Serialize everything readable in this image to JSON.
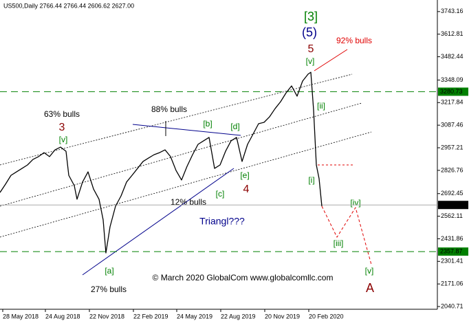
{
  "chart_data": {
    "type": "line",
    "header": "US500,Daily  2766.44 2766.44 2606.62 2627.00",
    "ylim": [
      2025,
      3810
    ],
    "yticks": [
      3743.16,
      3612.81,
      3482.44,
      3348.09,
      3217.84,
      3087.46,
      2957.21,
      2826.76,
      2692.45,
      2562.11,
      2431.86,
      2301.41,
      2171.06,
      2040.71
    ],
    "xlim": [
      0,
      636
    ],
    "xticks": [
      {
        "value": 4,
        "label": "28 May 2018"
      },
      {
        "value": 66,
        "label": "24 Aug 2018"
      },
      {
        "value": 130,
        "label": "22 Nov 2018"
      },
      {
        "value": 194,
        "label": "22 Feb 2019"
      },
      {
        "value": 257,
        "label": "24 May 2019"
      },
      {
        "value": 321,
        "label": "22 Aug 2019"
      },
      {
        "value": 385,
        "label": "20 Nov 2019"
      },
      {
        "value": 449,
        "label": "20 Feb 2020"
      }
    ],
    "levels": [
      {
        "value": 3280.73,
        "label": "3280.73",
        "color": "#008000"
      },
      {
        "value": 2627,
        "label": "2627.00",
        "color": "#000000"
      },
      {
        "value": 2357.87,
        "label": "2357.87",
        "color": "#008000"
      }
    ],
    "series": [
      {
        "name": "US500",
        "color": "#000000",
        "x": [
          0,
          8,
          16,
          24,
          32,
          40,
          48,
          56,
          64,
          72,
          80,
          88,
          96,
          100,
          108,
          112,
          120,
          128,
          136,
          144,
          150,
          154,
          160,
          168,
          176,
          184,
          192,
          200,
          208,
          216,
          224,
          232,
          240,
          248,
          256,
          264,
          272,
          280,
          288,
          296,
          304,
          312,
          320,
          328,
          336,
          344,
          352,
          360,
          368,
          376,
          384,
          392,
          400,
          408,
          416,
          424,
          432,
          440,
          448,
          452,
          456,
          460,
          464,
          468
        ],
        "values": [
          2699,
          2747,
          2798,
          2818,
          2838,
          2858,
          2890,
          2906,
          2929,
          2906,
          2945,
          2961,
          2937,
          2798,
          2739,
          2660,
          2759,
          2818,
          2719,
          2660,
          2541,
          2350,
          2501,
          2620,
          2679,
          2759,
          2798,
          2838,
          2878,
          2898,
          2917,
          2929,
          2945,
          2906,
          2826,
          2771,
          2850,
          2917,
          2977,
          2997,
          3017,
          2838,
          2858,
          2937,
          2997,
          3017,
          2878,
          2977,
          3036,
          3096,
          3104,
          3136,
          3183,
          3223,
          3274,
          3314,
          3255,
          3342,
          3382,
          3393,
          3175,
          2858,
          2779,
          2620
        ]
      },
      {
        "name": "projection",
        "color": "#e00000",
        "x": [
          468,
          490,
          517,
          540
        ],
        "values": [
          2620,
          2441,
          2612,
          2283
        ]
      }
    ],
    "annotations": [
      "[3]",
      "(5)",
      "5",
      "92% bulls",
      "[v]",
      "[ii]",
      "[i]",
      "[iv]",
      "[iii]",
      "[v]",
      "A",
      "63% bulls",
      "3",
      "[v]",
      "88% bulls",
      "[b]",
      "[d]",
      "[e]",
      "4",
      "[c]",
      "12% bulls",
      "Triangl???",
      "[a]",
      "27% bulls",
      "© March 2020 GlobalCom www.globalcomllc.com"
    ]
  }
}
